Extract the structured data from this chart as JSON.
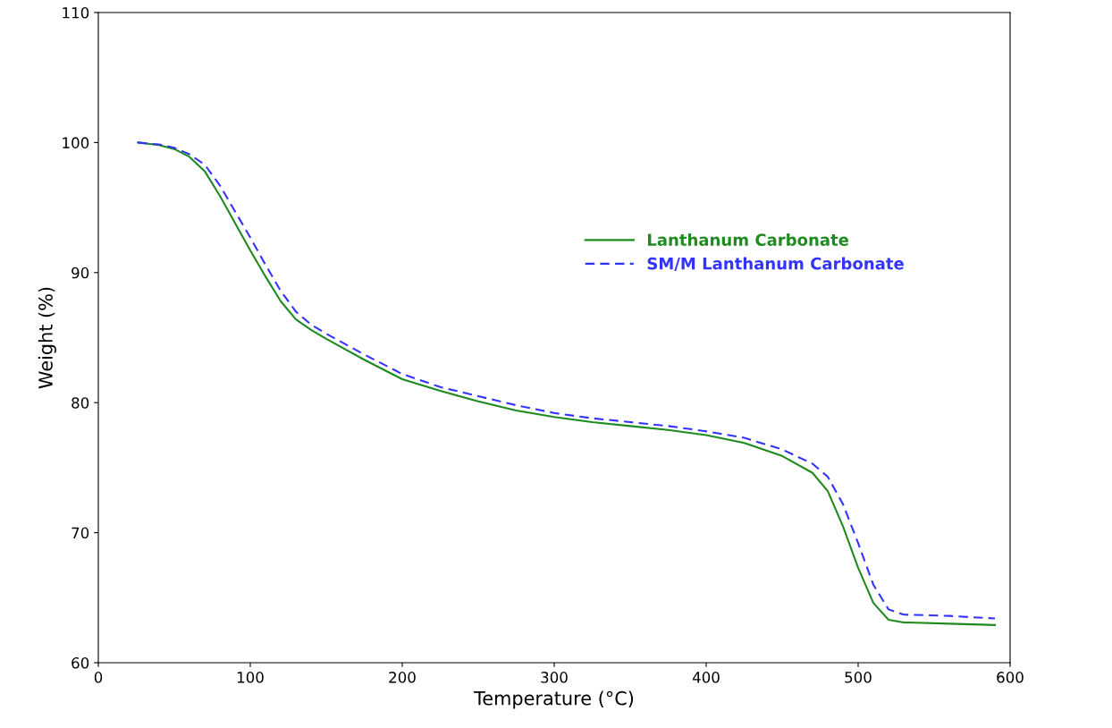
{
  "chart_data": {
    "type": "line",
    "xlabel": "Temperature (°C)",
    "ylabel": "Weight (%)",
    "xlim": [
      0,
      600
    ],
    "xticks": [
      0,
      100,
      200,
      300,
      400,
      500,
      600
    ],
    "ylim": [
      60,
      110
    ],
    "yticks": [
      60,
      70,
      80,
      90,
      100,
      110
    ],
    "grid": false,
    "legend": "right",
    "series": [
      {
        "name": "Lanthanum Carbonate",
        "color": "#1f8a1f",
        "line_style": "solid",
        "x": [
          26,
          40,
          50,
          60,
          70,
          80,
          90,
          100,
          110,
          120,
          130,
          140,
          150,
          175,
          200,
          225,
          250,
          275,
          300,
          325,
          350,
          375,
          400,
          425,
          450,
          470,
          480,
          490,
          500,
          510,
          520,
          530,
          560,
          590
        ],
        "values": [
          100,
          99.8,
          99.5,
          98.9,
          97.8,
          95.9,
          93.8,
          91.7,
          89.7,
          87.8,
          86.4,
          85.6,
          84.9,
          83.3,
          81.8,
          80.9,
          80.1,
          79.4,
          78.9,
          78.5,
          78.2,
          77.9,
          77.5,
          76.9,
          75.9,
          74.6,
          73.2,
          70.5,
          67.3,
          64.6,
          63.3,
          63.1,
          63.0,
          62.9
        ]
      },
      {
        "name": "SM/M Lanthanum Carbonate",
        "color": "#3333ff",
        "line_style": "dashed",
        "x": [
          26,
          40,
          50,
          60,
          70,
          80,
          90,
          100,
          110,
          120,
          130,
          140,
          150,
          175,
          200,
          225,
          250,
          275,
          300,
          325,
          350,
          375,
          400,
          425,
          450,
          470,
          480,
          490,
          500,
          510,
          520,
          530,
          560,
          590
        ],
        "values": [
          100,
          99.85,
          99.6,
          99.1,
          98.3,
          96.7,
          94.7,
          92.7,
          90.6,
          88.6,
          87.0,
          86.0,
          85.3,
          83.7,
          82.2,
          81.2,
          80.5,
          79.8,
          79.2,
          78.8,
          78.5,
          78.2,
          77.8,
          77.3,
          76.4,
          75.3,
          74.3,
          72.2,
          69.2,
          66.0,
          64.1,
          63.7,
          63.6,
          63.4
        ]
      }
    ]
  }
}
